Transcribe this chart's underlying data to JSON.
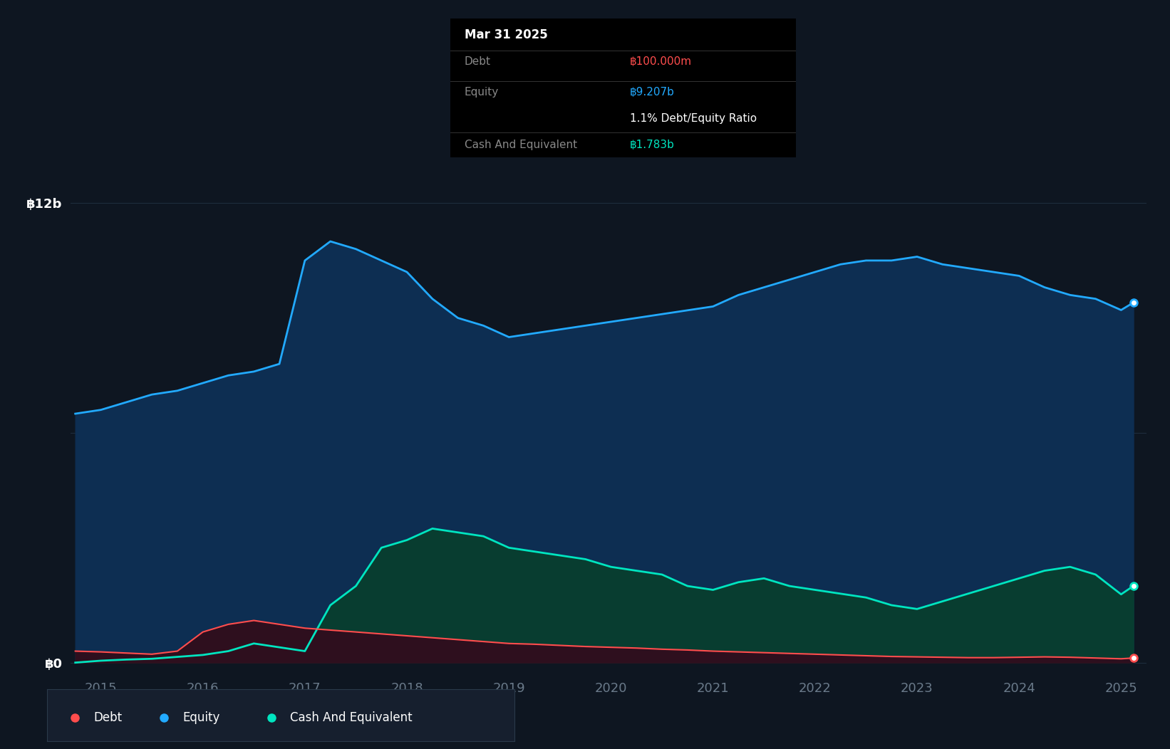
{
  "background_color": "#0e1621",
  "plot_bg_color": "#0e1621",
  "ylabel_top": "฿12b",
  "ylabel_zero": "฿0",
  "x_ticks": [
    2015,
    2016,
    2017,
    2018,
    2019,
    2020,
    2021,
    2022,
    2023,
    2024,
    2025
  ],
  "tooltip_title": "Mar 31 2025",
  "tooltip_debt_label": "Debt",
  "tooltip_equity_label": "Equity",
  "tooltip_cash_label": "Cash And Equivalent",
  "tooltip_debt": "฿100.000m",
  "tooltip_equity": "฿9.207b",
  "tooltip_ratio": "1.1% Debt/Equity Ratio",
  "tooltip_cash": "฿1.783b",
  "debt_color": "#ff4d4d",
  "equity_color": "#22aaff",
  "cash_color": "#00e5c0",
  "equity_fill_color": "#0d2e52",
  "cash_fill_color": "#083d30",
  "debt_fill_color": "#2e0f1e",
  "years": [
    2014.75,
    2015.0,
    2015.25,
    2015.5,
    2015.75,
    2016.0,
    2016.25,
    2016.5,
    2016.75,
    2017.0,
    2017.25,
    2017.5,
    2017.75,
    2018.0,
    2018.25,
    2018.5,
    2018.75,
    2019.0,
    2019.25,
    2019.5,
    2019.75,
    2020.0,
    2020.25,
    2020.5,
    2020.75,
    2021.0,
    2021.25,
    2021.5,
    2021.75,
    2022.0,
    2022.25,
    2022.5,
    2022.75,
    2023.0,
    2023.25,
    2023.5,
    2023.75,
    2024.0,
    2024.25,
    2024.5,
    2024.75,
    2025.0,
    2025.12
  ],
  "equity": [
    6.5,
    6.6,
    6.8,
    7.0,
    7.1,
    7.3,
    7.5,
    7.6,
    7.8,
    10.5,
    11.0,
    10.8,
    10.5,
    10.2,
    9.5,
    9.0,
    8.8,
    8.5,
    8.6,
    8.7,
    8.8,
    8.9,
    9.0,
    9.1,
    9.2,
    9.3,
    9.6,
    9.8,
    10.0,
    10.2,
    10.4,
    10.5,
    10.5,
    10.6,
    10.4,
    10.3,
    10.2,
    10.1,
    9.8,
    9.6,
    9.5,
    9.207,
    9.4
  ],
  "cash": [
    0.0,
    0.05,
    0.08,
    0.1,
    0.15,
    0.2,
    0.3,
    0.5,
    0.4,
    0.3,
    1.5,
    2.0,
    3.0,
    3.2,
    3.5,
    3.4,
    3.3,
    3.0,
    2.9,
    2.8,
    2.7,
    2.5,
    2.4,
    2.3,
    2.0,
    1.9,
    2.1,
    2.2,
    2.0,
    1.9,
    1.8,
    1.7,
    1.5,
    1.4,
    1.6,
    1.8,
    2.0,
    2.2,
    2.4,
    2.5,
    2.3,
    1.783,
    2.0
  ],
  "debt": [
    0.3,
    0.28,
    0.25,
    0.22,
    0.3,
    0.8,
    1.0,
    1.1,
    1.0,
    0.9,
    0.85,
    0.8,
    0.75,
    0.7,
    0.65,
    0.6,
    0.55,
    0.5,
    0.48,
    0.45,
    0.42,
    0.4,
    0.38,
    0.35,
    0.33,
    0.3,
    0.28,
    0.26,
    0.24,
    0.22,
    0.2,
    0.18,
    0.16,
    0.15,
    0.14,
    0.13,
    0.13,
    0.14,
    0.15,
    0.14,
    0.12,
    0.1,
    0.12
  ],
  "legend_items": [
    {
      "label": "Debt",
      "color": "#ff4d4d"
    },
    {
      "label": "Equity",
      "color": "#22aaff"
    },
    {
      "label": "Cash And Equivalent",
      "color": "#00e5c0"
    }
  ],
  "grid_color": "#1e2d3d",
  "tick_color": "#6a7a8a"
}
